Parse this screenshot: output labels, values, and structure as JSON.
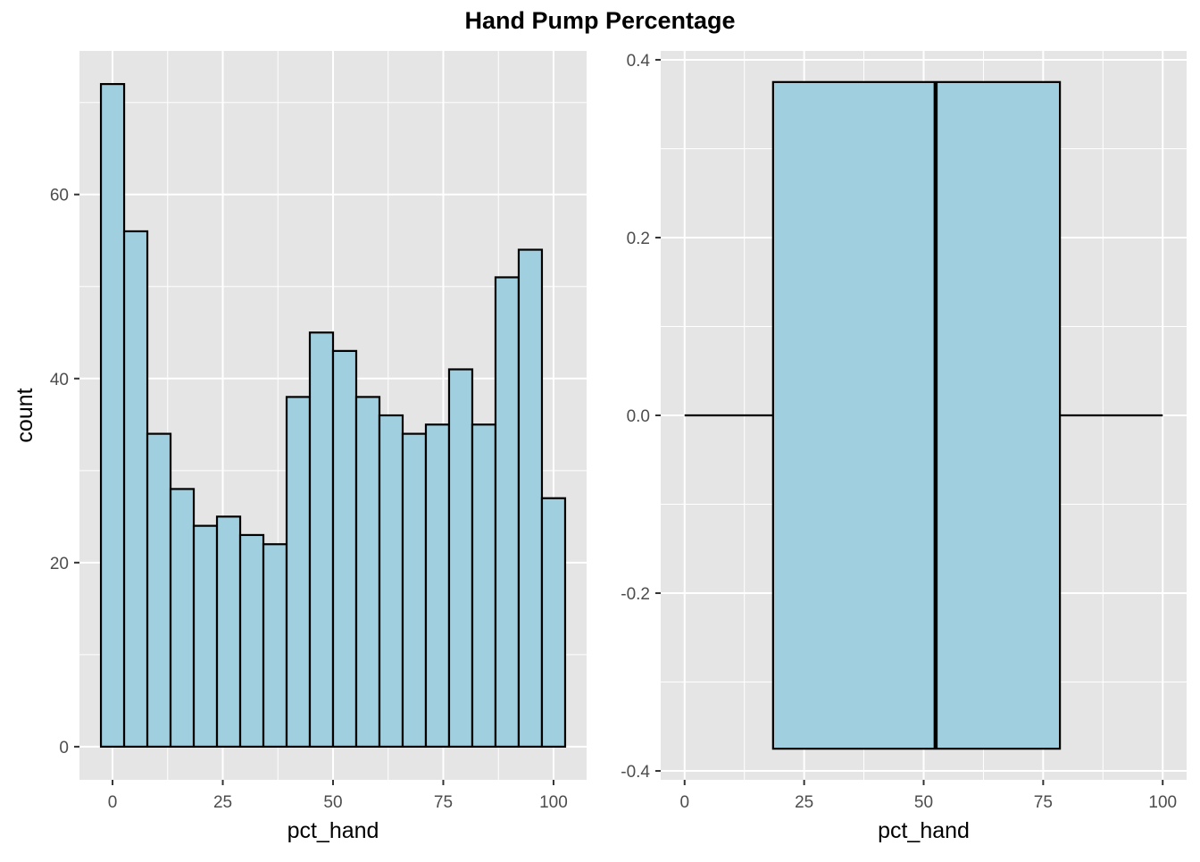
{
  "title": "Hand Pump Percentage",
  "colors": {
    "panel_bg": "#e5e5e5",
    "grid": "#ffffff",
    "fill": "#a0cfe0",
    "outline": "#000000",
    "tick": "#333333"
  },
  "chart_data": [
    {
      "type": "bar",
      "subtype": "histogram",
      "xlabel": "pct_hand",
      "ylabel": "count",
      "xlim": [
        -7.5,
        107.5
      ],
      "ylim": [
        -3.6,
        75.6
      ],
      "x_ticks": [
        0,
        25,
        50,
        75,
        100
      ],
      "y_ticks": [
        0,
        20,
        40,
        60
      ],
      "bin_width": 5.263,
      "bin_centers": [
        0,
        5.263,
        10.526,
        15.789,
        21.053,
        26.316,
        31.579,
        36.842,
        42.105,
        47.368,
        52.632,
        57.895,
        63.158,
        68.421,
        73.684,
        78.947,
        84.211,
        89.474,
        94.737,
        100
      ],
      "counts": [
        72,
        56,
        34,
        28,
        24,
        25,
        23,
        22,
        38,
        45,
        43,
        38,
        36,
        34,
        35,
        41,
        35,
        51,
        54,
        27
      ],
      "grid": true
    },
    {
      "type": "box",
      "orientation": "horizontal",
      "xlabel": "pct_hand",
      "ylabel": "",
      "xlim": [
        -5,
        105
      ],
      "ylim": [
        -0.41,
        0.41
      ],
      "x_ticks": [
        0,
        25,
        50,
        75,
        100
      ],
      "y_ticks": [
        -0.4,
        -0.2,
        0.0,
        0.2,
        0.4
      ],
      "y_tick_labels": [
        "-0.4",
        "-0.2",
        "0.0",
        "0.2",
        "0.4"
      ],
      "min": 0,
      "q1": 18.5,
      "median": 52.5,
      "q3": 78.5,
      "max": 100,
      "box_halfwidth": 0.375,
      "grid": true
    }
  ]
}
